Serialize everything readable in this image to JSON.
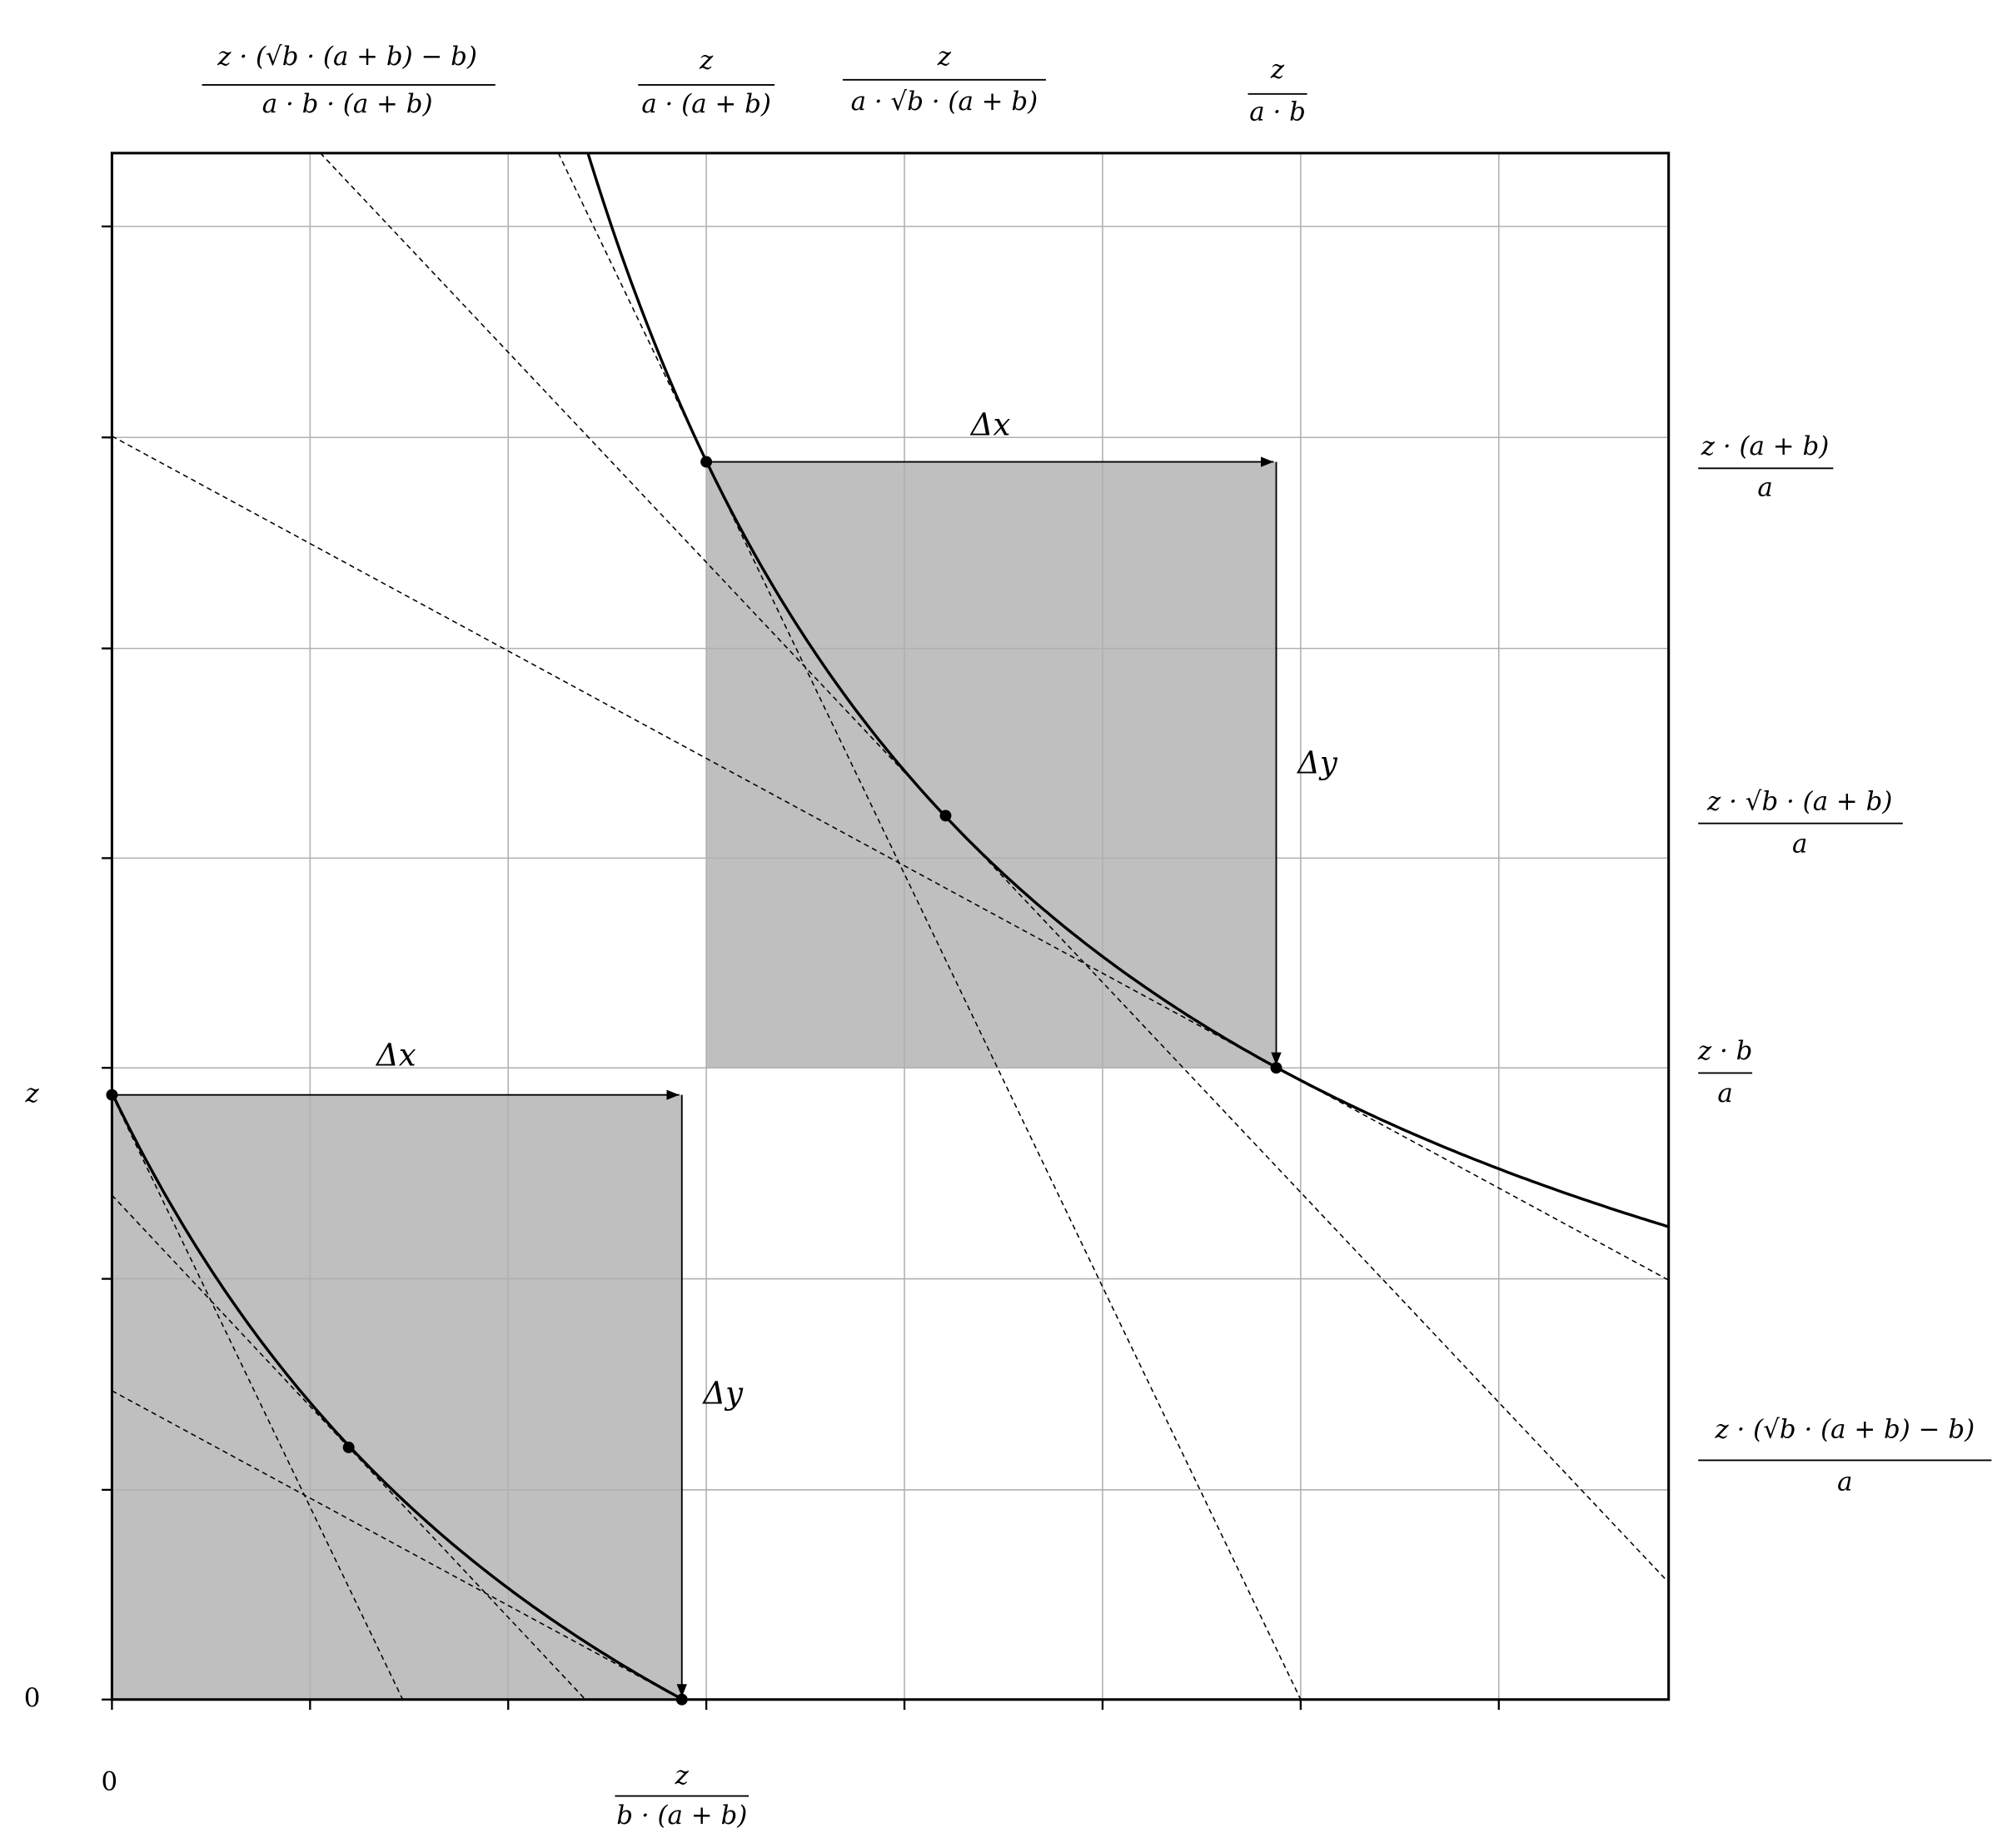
{
  "top_labels": [
    {
      "numerator": "z · (√b · (a + b) − b)",
      "denominator": "a · b · (a + b)"
    },
    {
      "numerator": "z",
      "denominator": "a · (a + b)"
    },
    {
      "numerator": "z",
      "denominator": "a · √b · (a + b)"
    },
    {
      "numerator": "z",
      "denominator": "a · b"
    }
  ],
  "right_labels": [
    {
      "numerator": "z · (a + b)",
      "denominator": "a"
    },
    {
      "numerator": "z · √b · (a + b)",
      "denominator": "a"
    },
    {
      "numerator": "z · b",
      "denominator": "a"
    },
    {
      "numerator": "z · (√b · (a + b) − b)",
      "denominator": "a"
    }
  ],
  "left_labels": [
    "z",
    "0"
  ],
  "bottom_labels": {
    "zero": "0",
    "fraction": {
      "numerator": "z",
      "denominator": "b · (a + b)"
    }
  },
  "annotations": [
    "Δx",
    "Δy",
    "Δx",
    "Δy"
  ]
}
